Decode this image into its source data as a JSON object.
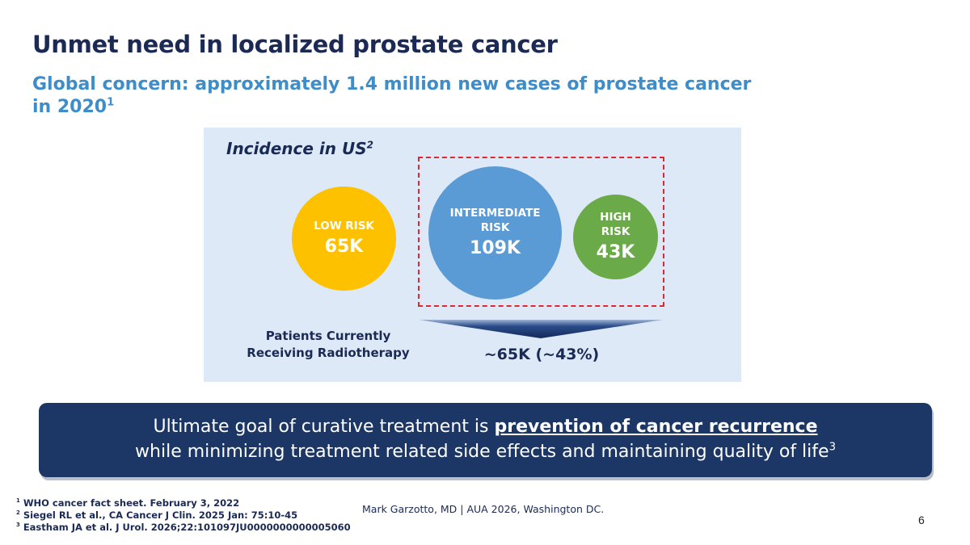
{
  "slide": {
    "title": "Unmet need in localized prostate cancer",
    "subtitle": "Global concern: approximately 1.4 million new cases of prostate cancer in 2020",
    "subtitle_ref": "1"
  },
  "incidence": {
    "heading": "Incidence in US",
    "heading_ref": "2",
    "circles": [
      {
        "label": "LOW RISK",
        "value": "65K",
        "color": "#fdc100"
      },
      {
        "label_line1": "INTERMEDIATE",
        "label_line2": "RISK",
        "value": "109K",
        "color": "#5b9bd5"
      },
      {
        "label_line1": "HIGH",
        "label_line2": "RISK",
        "value": "43K",
        "color": "#6aaa48"
      }
    ],
    "radiotherapy_label_line1": "Patients Currently",
    "radiotherapy_label_line2": "Receiving Radiotherapy",
    "radiotherapy_value": "~65K (~43%)",
    "highlight_color": "#e0262f"
  },
  "banner": {
    "line1_prefix": "Ultimate goal of curative treatment is ",
    "line1_emphasis": "prevention of cancer recurrence",
    "line2": "while minimizing treatment related side effects and maintaining quality of life",
    "line2_ref": "3",
    "background": "#1c3766"
  },
  "footer": {
    "references": [
      {
        "num": "1",
        "text": "WHO cancer fact sheet. February 3, 2022"
      },
      {
        "num": "2",
        "text": "Siegel RL et al., CA Cancer J Clin. 2025 Jan: 75:10-45"
      },
      {
        "num": "3",
        "text": "Eastham JA et al. J Urol. 2026;22:101097JU0000000000005060"
      }
    ],
    "author": "Mark Garzotto, MD |  AUA 2026, Washington DC.",
    "page_number": "6"
  }
}
